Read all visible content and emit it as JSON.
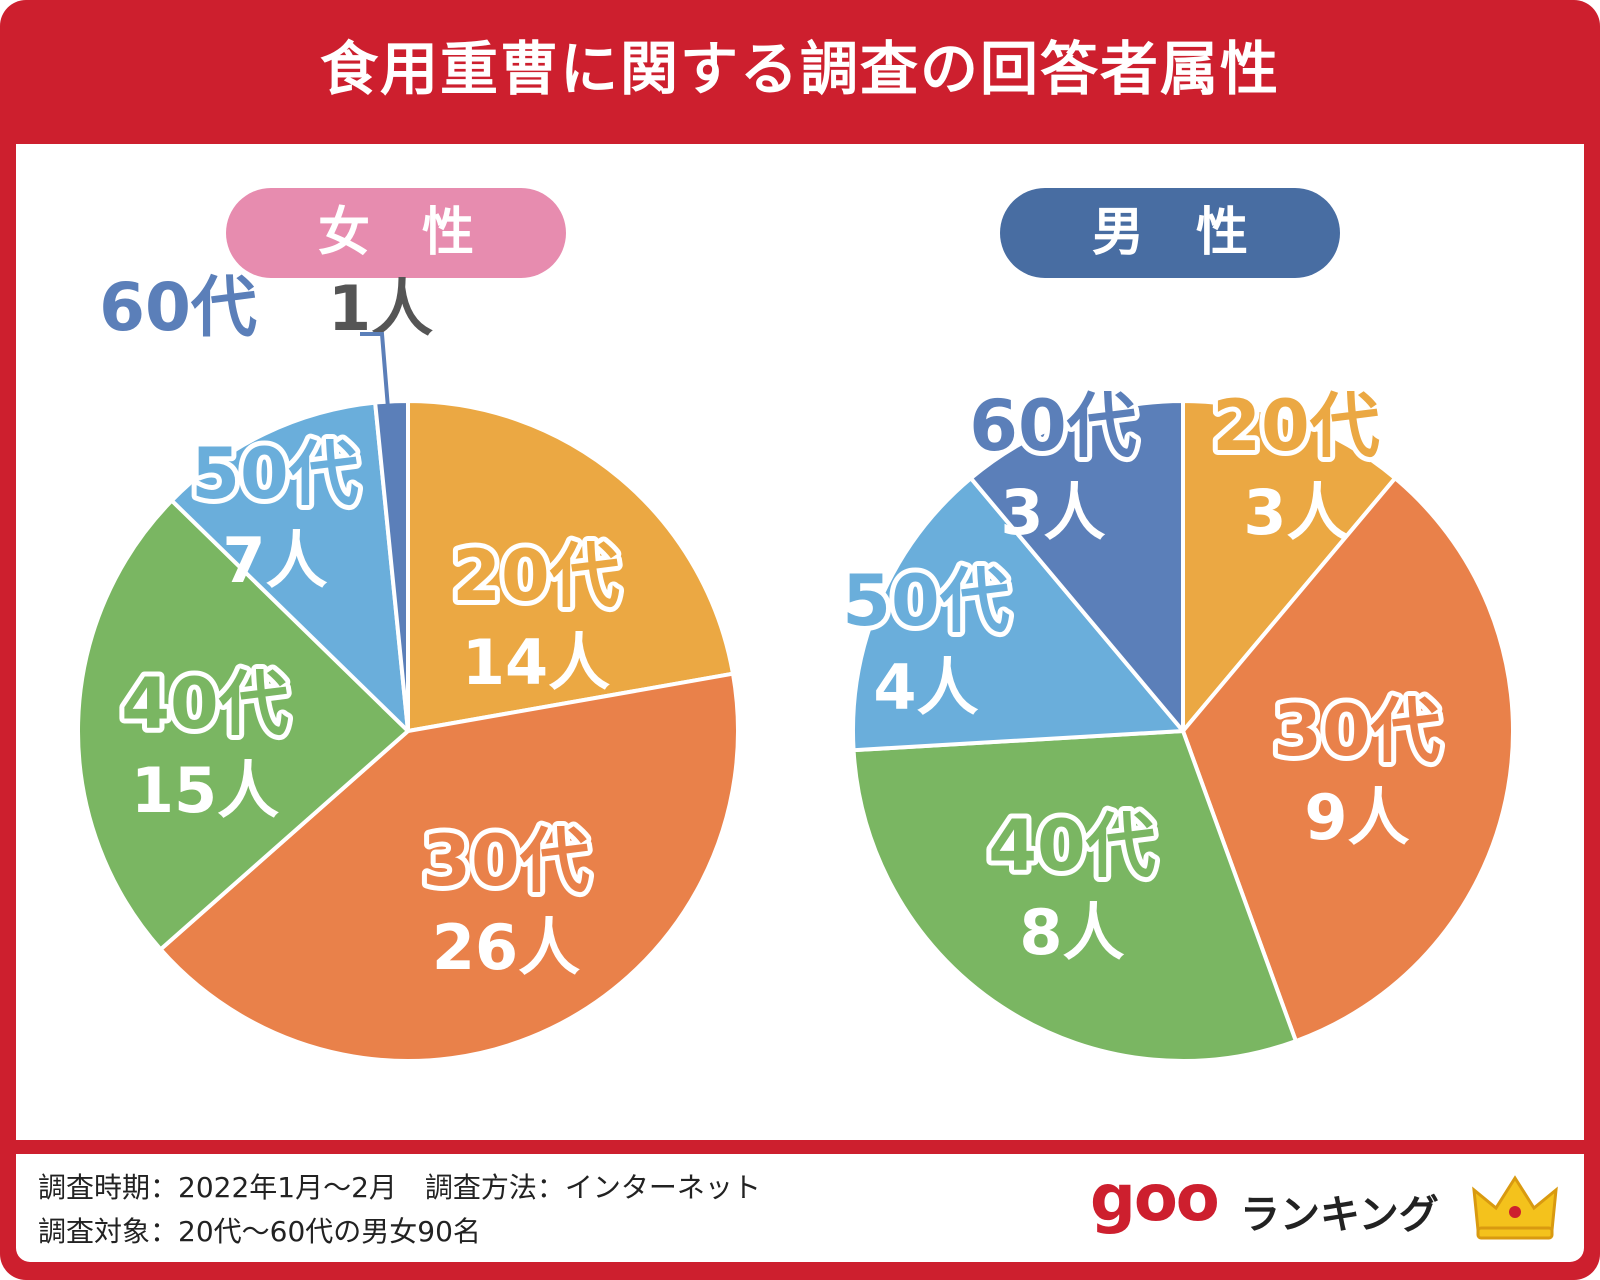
{
  "title": "食用重曹に関する調査の回答者属性",
  "footer": {
    "line1": "調査時期：2022年1月〜2月　調査方法：インターネット",
    "line2": "調査対象：20代〜60代の男女90名"
  },
  "logo": {
    "brand": "goo",
    "text": "ランキング",
    "icon": "crown-icon"
  },
  "colors": {
    "frame": "#cd1f2e",
    "20代": "#eba843",
    "30代": "#e9814a",
    "40代": "#7ab662",
    "50代": "#6aaedb",
    "60代": "#5b7fb9",
    "female_pill": "#e78caf",
    "male_pill": "#486da2"
  },
  "chart_data": [
    {
      "type": "pie",
      "title": "女　性",
      "unit": "人",
      "categories": [
        "20代",
        "30代",
        "40代",
        "50代",
        "60代"
      ],
      "values": [
        14,
        26,
        15,
        7,
        1
      ]
    },
    {
      "type": "pie",
      "title": "男　性",
      "unit": "人",
      "categories": [
        "20代",
        "30代",
        "40代",
        "50代",
        "60代"
      ],
      "values": [
        3,
        9,
        8,
        4,
        3
      ]
    }
  ]
}
